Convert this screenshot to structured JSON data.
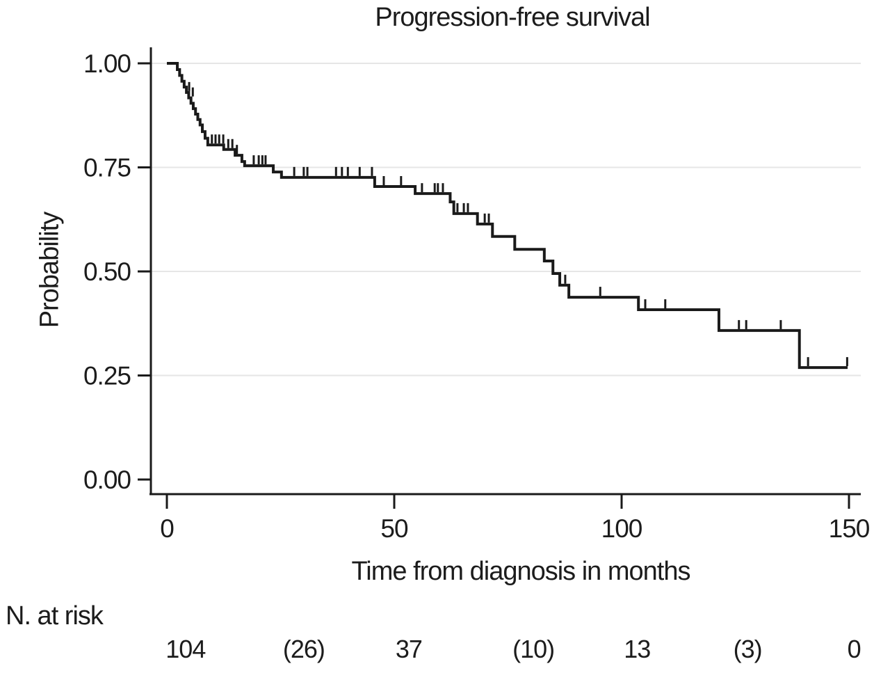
{
  "chart_data": {
    "type": "line",
    "subtype": "kaplan-meier-step-function",
    "title": "Progression-free survival",
    "xlabel": "Time from diagnosis in months",
    "ylabel": "Probability",
    "xlim": [
      0,
      150
    ],
    "ylim": [
      0.0,
      1.0
    ],
    "x_ticks": [
      "0",
      "50",
      "100",
      "150"
    ],
    "x_tick_values": [
      0,
      50,
      100,
      150
    ],
    "y_ticks": [
      "0.00",
      "0.25",
      "0.50",
      "0.75",
      "1.00"
    ],
    "y_tick_values": [
      0,
      0.25,
      0.5,
      0.75,
      1.0
    ],
    "grid": "horizontal gridlines at 0.25, 0.50, 0.75, 1.00",
    "legend": "none",
    "line_color": "#1a1a1a",
    "grid_color": "#e6e6e6",
    "background_color": "#ffffff",
    "series": [
      {
        "name": "Progression-free survival",
        "start": [
          0,
          1.0
        ],
        "end_time": 149.7,
        "steps": [
          [
            2.3,
            0.985
          ],
          [
            2.8,
            0.971
          ],
          [
            3.3,
            0.957
          ],
          [
            3.8,
            0.943
          ],
          [
            4.3,
            0.93
          ],
          [
            4.8,
            0.917
          ],
          [
            5.3,
            0.904
          ],
          [
            5.8,
            0.891
          ],
          [
            6.3,
            0.878
          ],
          [
            6.8,
            0.865
          ],
          [
            7.3,
            0.852
          ],
          [
            7.8,
            0.836
          ],
          [
            8.4,
            0.82
          ],
          [
            9.0,
            0.804
          ],
          [
            12.5,
            0.793
          ],
          [
            15.0,
            0.779
          ],
          [
            16.5,
            0.764
          ],
          [
            17.1,
            0.754
          ],
          [
            23.4,
            0.739
          ],
          [
            25.2,
            0.726
          ],
          [
            45.7,
            0.704
          ],
          [
            54.6,
            0.687
          ],
          [
            62.3,
            0.667
          ],
          [
            63.1,
            0.639
          ],
          [
            68.3,
            0.614
          ],
          [
            71.6,
            0.584
          ],
          [
            76.5,
            0.553
          ],
          [
            83.0,
            0.525
          ],
          [
            84.9,
            0.495
          ],
          [
            86.4,
            0.467
          ],
          [
            88.4,
            0.438
          ],
          [
            103.7,
            0.408
          ],
          [
            121.4,
            0.358
          ],
          [
            139.1,
            0.269
          ]
        ],
        "censor_marks": [
          [
            4.9,
            0.93
          ],
          [
            5.7,
            0.917
          ],
          [
            9.9,
            0.804
          ],
          [
            10.7,
            0.804
          ],
          [
            11.5,
            0.804
          ],
          [
            12.4,
            0.804
          ],
          [
            13.5,
            0.793
          ],
          [
            14.4,
            0.793
          ],
          [
            15.4,
            0.779
          ],
          [
            19.1,
            0.754
          ],
          [
            20.2,
            0.754
          ],
          [
            21.0,
            0.754
          ],
          [
            21.7,
            0.754
          ],
          [
            28.0,
            0.726
          ],
          [
            30.1,
            0.726
          ],
          [
            30.9,
            0.726
          ],
          [
            37.2,
            0.726
          ],
          [
            38.5,
            0.726
          ],
          [
            39.8,
            0.726
          ],
          [
            42.4,
            0.726
          ],
          [
            45.1,
            0.726
          ],
          [
            47.7,
            0.704
          ],
          [
            51.5,
            0.704
          ],
          [
            56.1,
            0.687
          ],
          [
            58.9,
            0.687
          ],
          [
            59.6,
            0.687
          ],
          [
            60.7,
            0.687
          ],
          [
            63.9,
            0.639
          ],
          [
            65.3,
            0.639
          ],
          [
            66.2,
            0.639
          ],
          [
            69.9,
            0.614
          ],
          [
            70.8,
            0.614
          ],
          [
            87.6,
            0.467
          ],
          [
            95.3,
            0.438
          ],
          [
            105.2,
            0.408
          ],
          [
            109.6,
            0.408
          ],
          [
            125.8,
            0.358
          ],
          [
            127.4,
            0.358
          ],
          [
            135.0,
            0.358
          ],
          [
            141.0,
            0.269
          ],
          [
            149.6,
            0.269
          ]
        ]
      }
    ],
    "risk_table": {
      "label": "N. at risk",
      "values": [
        "104",
        "(26)",
        "37",
        "(10)",
        "13",
        "(3)",
        "0"
      ],
      "positions_months": [
        4.1,
        30.1,
        53.2,
        80.6,
        103.4,
        127.7,
        151.1
      ]
    }
  }
}
